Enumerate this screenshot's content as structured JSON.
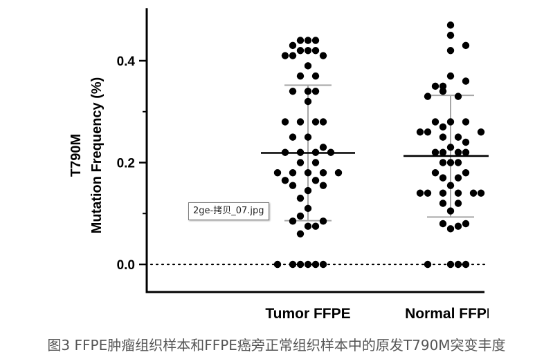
{
  "chart_data": {
    "type": "scatter",
    "ylabel_line1": "T790M",
    "ylabel_line2": "Mutation Frequency (%)",
    "ylim": [
      -0.05,
      0.5
    ],
    "yticks": [
      0.0,
      0.2,
      0.4
    ],
    "ytick_labels": [
      "0.0",
      "0.2",
      "0.4"
    ],
    "zero_line": "dotted",
    "grid": false,
    "categories": [
      "Tumor FFPE",
      "Normal FFPE"
    ],
    "groups": [
      {
        "category": "Tumor FFPE",
        "mean": 0.219,
        "sd_upper": 0.352,
        "sd_lower": 0.086,
        "points": [
          {
            "dx": -2,
            "y": 0.0
          },
          {
            "dx": -1,
            "y": 0.0
          },
          {
            "dx": 0,
            "y": 0.0
          },
          {
            "dx": 1,
            "y": 0.0
          },
          {
            "dx": 2,
            "y": 0.0
          },
          {
            "dx": -4,
            "y": 0.0
          },
          {
            "dx": -1,
            "y": 0.06
          },
          {
            "dx": 0,
            "y": 0.075
          },
          {
            "dx": 1,
            "y": 0.075
          },
          {
            "dx": -2,
            "y": 0.085
          },
          {
            "dx": 2,
            "y": 0.085
          },
          {
            "dx": -1,
            "y": 0.095
          },
          {
            "dx": 0,
            "y": 0.11
          },
          {
            "dx": -1,
            "y": 0.13
          },
          {
            "dx": 0,
            "y": 0.145
          },
          {
            "dx": -2,
            "y": 0.155
          },
          {
            "dx": 2,
            "y": 0.155
          },
          {
            "dx": -3,
            "y": 0.165
          },
          {
            "dx": 1,
            "y": 0.165
          },
          {
            "dx": -4,
            "y": 0.18
          },
          {
            "dx": -2,
            "y": 0.18
          },
          {
            "dx": 0,
            "y": 0.18
          },
          {
            "dx": 2,
            "y": 0.18
          },
          {
            "dx": 4,
            "y": 0.18
          },
          {
            "dx": -1,
            "y": 0.2
          },
          {
            "dx": 1,
            "y": 0.2
          },
          {
            "dx": -3,
            "y": 0.22
          },
          {
            "dx": -1,
            "y": 0.22
          },
          {
            "dx": 1,
            "y": 0.22
          },
          {
            "dx": 3,
            "y": 0.22
          },
          {
            "dx": -2,
            "y": 0.25
          },
          {
            "dx": 0,
            "y": 0.25
          },
          {
            "dx": 2,
            "y": 0.23
          },
          {
            "dx": -3,
            "y": 0.28
          },
          {
            "dx": -1,
            "y": 0.28
          },
          {
            "dx": 1,
            "y": 0.28
          },
          {
            "dx": 2,
            "y": 0.28
          },
          {
            "dx": 0,
            "y": 0.32
          },
          {
            "dx": -2,
            "y": 0.34
          },
          {
            "dx": 0,
            "y": 0.34
          },
          {
            "dx": 1,
            "y": 0.34
          },
          {
            "dx": -1,
            "y": 0.37
          },
          {
            "dx": 1,
            "y": 0.37
          },
          {
            "dx": 0,
            "y": 0.39
          },
          {
            "dx": -3,
            "y": 0.41
          },
          {
            "dx": -2,
            "y": 0.41
          },
          {
            "dx": 2,
            "y": 0.41
          },
          {
            "dx": -1,
            "y": 0.42
          },
          {
            "dx": 0,
            "y": 0.42
          },
          {
            "dx": 1,
            "y": 0.42
          },
          {
            "dx": -2,
            "y": 0.43
          },
          {
            "dx": -1,
            "y": 0.44
          },
          {
            "dx": 0,
            "y": 0.44
          },
          {
            "dx": 1,
            "y": 0.44
          }
        ]
      },
      {
        "category": "Normal FFPE",
        "mean": 0.213,
        "sd_upper": 0.332,
        "sd_lower": 0.093,
        "points": [
          {
            "dx": -3,
            "y": 0.0
          },
          {
            "dx": 0,
            "y": 0.0
          },
          {
            "dx": 1,
            "y": 0.0
          },
          {
            "dx": 2,
            "y": 0.0
          },
          {
            "dx": 0,
            "y": 0.07
          },
          {
            "dx": 1,
            "y": 0.075
          },
          {
            "dx": -1,
            "y": 0.08
          },
          {
            "dx": 2,
            "y": 0.08
          },
          {
            "dx": 0,
            "y": 0.105
          },
          {
            "dx": -1,
            "y": 0.12
          },
          {
            "dx": 1,
            "y": 0.12
          },
          {
            "dx": -4,
            "y": 0.14
          },
          {
            "dx": -3,
            "y": 0.14
          },
          {
            "dx": -1,
            "y": 0.14
          },
          {
            "dx": 1,
            "y": 0.14
          },
          {
            "dx": 3,
            "y": 0.14
          },
          {
            "dx": 4,
            "y": 0.14
          },
          {
            "dx": 0,
            "y": 0.155
          },
          {
            "dx": -1,
            "y": 0.17
          },
          {
            "dx": 1,
            "y": 0.17
          },
          {
            "dx": -2,
            "y": 0.18
          },
          {
            "dx": 2,
            "y": 0.18
          },
          {
            "dx": -1,
            "y": 0.2
          },
          {
            "dx": 0,
            "y": 0.2
          },
          {
            "dx": 1,
            "y": 0.2
          },
          {
            "dx": -2,
            "y": 0.22
          },
          {
            "dx": -1,
            "y": 0.22
          },
          {
            "dx": 1,
            "y": 0.22
          },
          {
            "dx": 2,
            "y": 0.22
          },
          {
            "dx": 0,
            "y": 0.23
          },
          {
            "dx": 2,
            "y": 0.24
          },
          {
            "dx": -1,
            "y": 0.25
          },
          {
            "dx": 1,
            "y": 0.25
          },
          {
            "dx": -4,
            "y": 0.26
          },
          {
            "dx": -3,
            "y": 0.26
          },
          {
            "dx": 4,
            "y": 0.26
          },
          {
            "dx": -1,
            "y": 0.27
          },
          {
            "dx": -2,
            "y": 0.28
          },
          {
            "dx": 0,
            "y": 0.28
          },
          {
            "dx": 2,
            "y": 0.28
          },
          {
            "dx": -3,
            "y": 0.33
          },
          {
            "dx": -1,
            "y": 0.34
          },
          {
            "dx": 1,
            "y": 0.33
          },
          {
            "dx": -2,
            "y": 0.35
          },
          {
            "dx": -1,
            "y": 0.35
          },
          {
            "dx": 2,
            "y": 0.36
          },
          {
            "dx": 0,
            "y": 0.37
          },
          {
            "dx": 0,
            "y": 0.42
          },
          {
            "dx": 2,
            "y": 0.43
          },
          {
            "dx": 0,
            "y": 0.45
          },
          {
            "dx": 0,
            "y": 0.47
          }
        ]
      }
    ],
    "colors": {
      "points": "#000000",
      "axis": "#000000",
      "error_bar": "#a6a6a6",
      "mean_line": "#000000"
    }
  },
  "caption": "图3 FFPE肿瘤组织样本和FFPE癌旁正常组织样本中的原发T790M突变丰度",
  "tooltip": "2ge-拷贝_07.jpg"
}
